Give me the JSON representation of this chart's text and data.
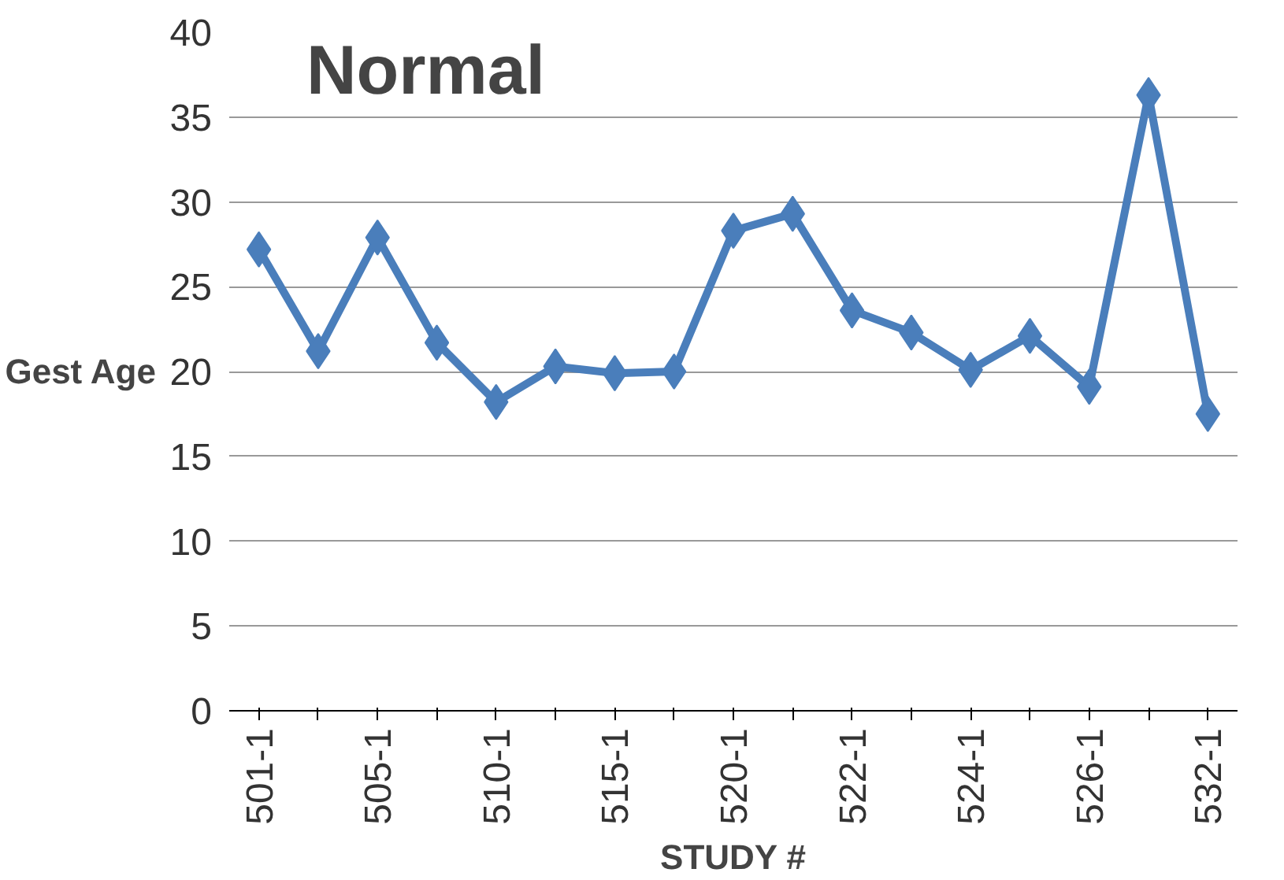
{
  "chart_data": {
    "type": "line",
    "title": "Normal",
    "xlabel": "STUDY #",
    "ylabel": "Gest Age",
    "categories": [
      "501-1",
      null,
      "505-1",
      null,
      "510-1",
      null,
      "515-1",
      null,
      "520-1",
      null,
      "522-1",
      null,
      "524-1",
      null,
      "526-1",
      null,
      "532-1"
    ],
    "series": [
      {
        "color": "#4a7ebb",
        "values": [
          27.2,
          21.2,
          27.9,
          21.7,
          18.2,
          20.3,
          19.9,
          20.0,
          28.3,
          29.3,
          23.6,
          22.3,
          20.1,
          22.1,
          19.1,
          36.3,
          17.5
        ]
      }
    ],
    "ylim": [
      0,
      40
    ],
    "yticks": [
      0,
      5,
      10,
      15,
      20,
      25,
      30,
      35,
      40
    ],
    "grid": "y",
    "marker": "diamond",
    "line_style": "solid"
  }
}
